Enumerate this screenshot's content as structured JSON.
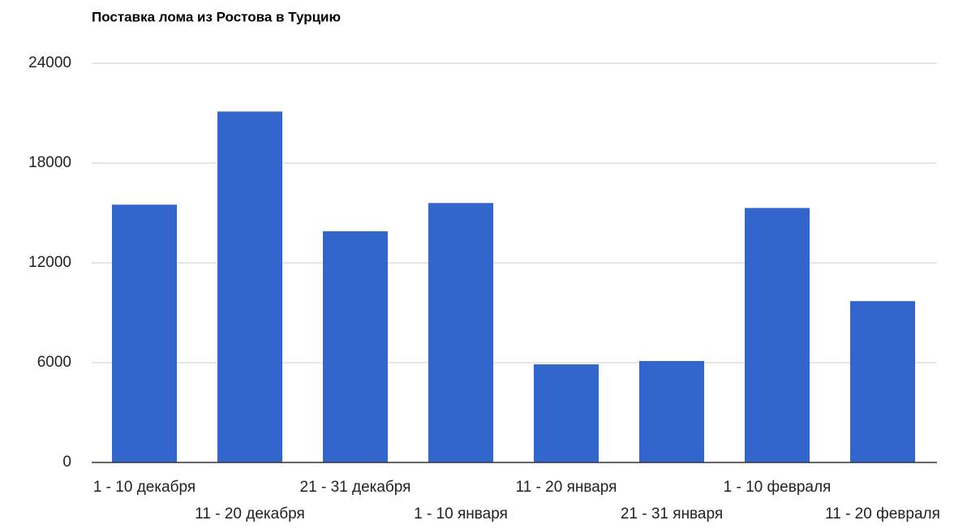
{
  "chart_data": {
    "type": "bar",
    "title": "Поставка лома из Ростова в Турцию",
    "categories": [
      "1 - 10 декабря",
      "11 - 20 декабря",
      "21 - 31 декабря",
      "1 - 10 января",
      "11 - 20 января",
      "21 - 31 января",
      "1 - 10 февраля",
      "11 - 20 февраля"
    ],
    "values": [
      15500,
      21100,
      13900,
      15600,
      5900,
      6100,
      15300,
      9700
    ],
    "color": "#3366cc",
    "ylim": [
      0,
      24000
    ],
    "yticks": [
      0,
      6000,
      12000,
      18000,
      24000
    ],
    "grid": true
  }
}
